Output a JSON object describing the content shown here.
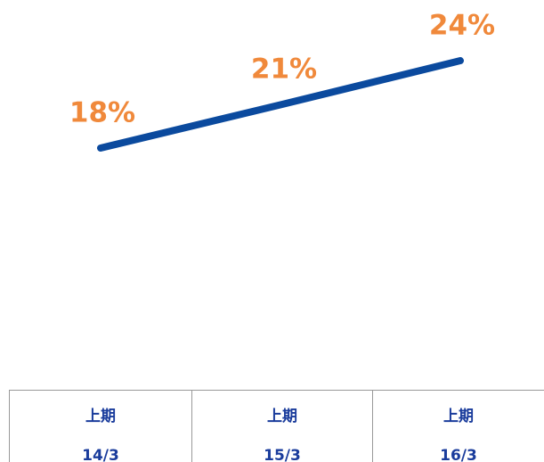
{
  "chart_data": {
    "type": "line",
    "categories": [
      [
        "上期",
        "14/3"
      ],
      [
        "上期",
        "15/3"
      ],
      [
        "上期",
        "16/3"
      ]
    ],
    "series": [
      {
        "color": "#0b4a9e",
        "values": [
          18,
          21,
          24
        ],
        "value_labels": [
          "18%",
          "21%",
          "24%"
        ],
        "label_color": "#f0893b"
      }
    ]
  }
}
